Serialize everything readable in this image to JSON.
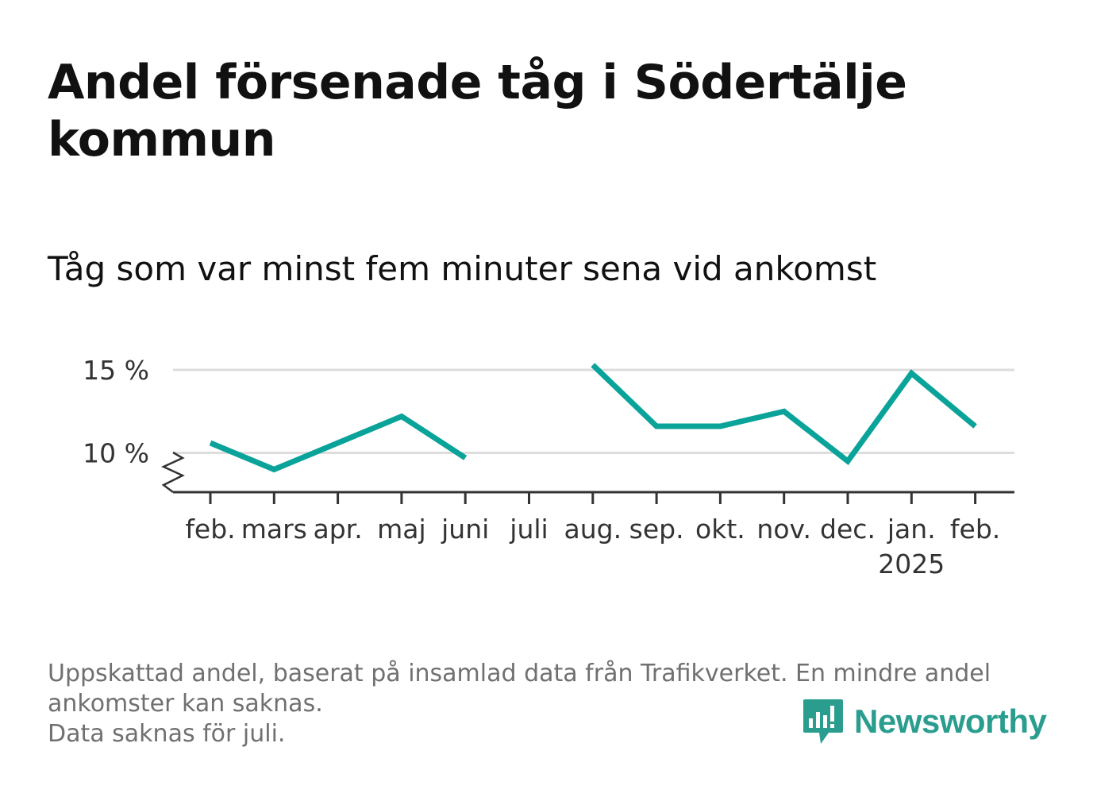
{
  "header": {
    "title": "Andel försenade tåg i Södertälje kommun",
    "subtitle": "Tåg som var minst fem minuter sena vid ankomst"
  },
  "chart_data": {
    "type": "line",
    "categories": [
      "feb.",
      "mars",
      "apr.",
      "maj",
      "juni",
      "juli",
      "aug.",
      "sep.",
      "okt.",
      "nov.",
      "dec.",
      "jan.",
      "feb."
    ],
    "year_labels": [
      {
        "index": 11,
        "label": "2025"
      }
    ],
    "series": [
      {
        "values": [
          10.6,
          9.0,
          10.6,
          12.2,
          9.7,
          null,
          15.3,
          11.6,
          11.6,
          12.5,
          9.5,
          14.8,
          11.6
        ],
        "color": "#0aa39a"
      }
    ],
    "y_ticks": [
      {
        "value": 10,
        "label": "10 %"
      },
      {
        "value": 15,
        "label": "15 %"
      }
    ],
    "ylim": [
      7.6,
      15.5
    ],
    "axis_break": true,
    "grid": true,
    "colors": {
      "grid": "#dddddd",
      "axis": "#333333",
      "tick_label": "#333333"
    }
  },
  "footnote": {
    "line1": "Uppskattad andel, baserat på insamlad data från Trafikverket. En mindre andel",
    "line2": "ankomster kan saknas.",
    "line3": "Data saknas för juli."
  },
  "logo": {
    "text": "Newsworthy",
    "icon": "newsworthy-bar-chart-icon",
    "color": "#2a9d8f"
  }
}
